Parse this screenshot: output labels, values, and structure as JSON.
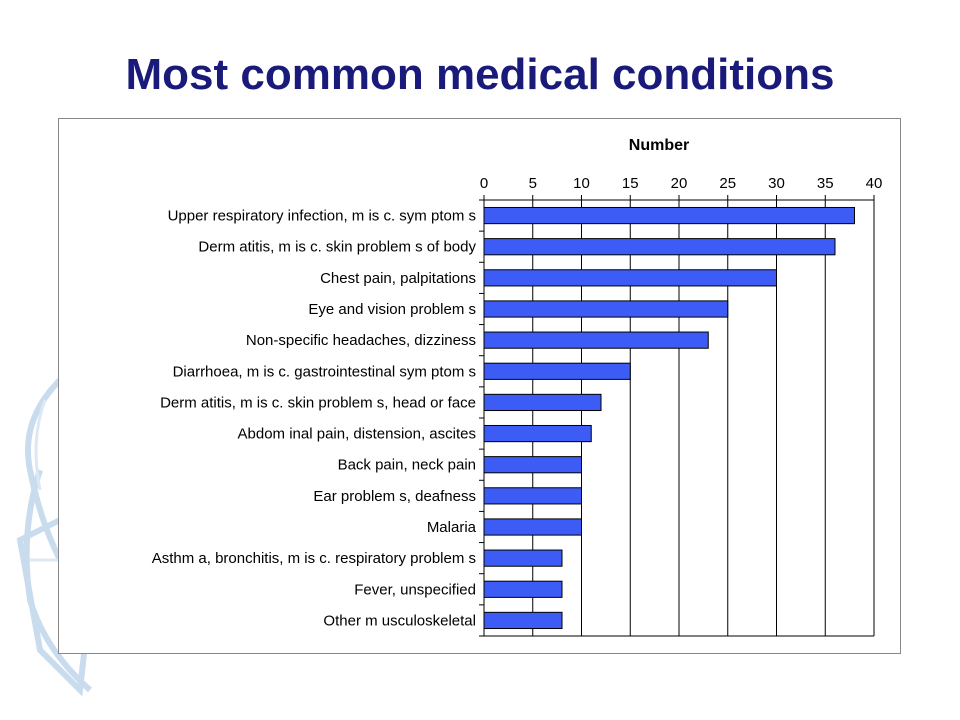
{
  "slide": {
    "title": "Most common medical conditions"
  },
  "colors": {
    "title": "#1a1a7a",
    "bar_fill": "#3d5cf5",
    "bar_stroke": "#000000",
    "grid": "#000000",
    "decoration": "#c9dcee"
  },
  "chart_data": {
    "type": "bar",
    "orientation": "horizontal",
    "title": "",
    "xlabel": "Number",
    "ylabel": "",
    "xaxis_position": "top",
    "xlim": [
      0,
      40
    ],
    "xticks": [
      0,
      5,
      10,
      15,
      20,
      25,
      30,
      35,
      40
    ],
    "grid": "vertical",
    "legend": "none",
    "categories": [
      "Upper respiratory infection, m is c. sym ptom s",
      "Derm atitis, m is c. skin problem s of body",
      "Chest pain, palpitations",
      "Eye and vision problem s",
      "Non-specific headaches, dizziness",
      "Diarrhoea, m is c. gastrointestinal sym ptom s",
      "Derm atitis, m is c. skin problem s, head or face",
      "Abdom inal pain, distension, ascites",
      "Back pain, neck pain",
      "Ear problem s, deafness",
      "Malaria",
      "Asthm a, bronchitis, m is c. respiratory problem s",
      "Fever, unspecified",
      "Other m usculoskeletal"
    ],
    "values": [
      38,
      36,
      30,
      25,
      23,
      15,
      12,
      11,
      10,
      10,
      10,
      8,
      8,
      8
    ]
  }
}
